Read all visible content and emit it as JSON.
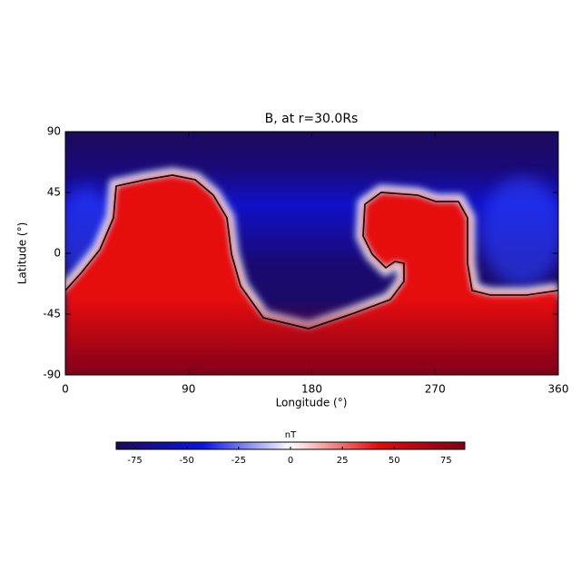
{
  "chart_data": {
    "type": "heatmap",
    "title": "B, at r=30.0Rs",
    "xlabel": "Longitude (°)",
    "ylabel": "Latitude (°)",
    "xlim": [
      0,
      360
    ],
    "xticks": [
      0,
      90,
      180,
      270,
      360
    ],
    "ylim": [
      -90,
      90
    ],
    "yticks": [
      -90,
      -45,
      0,
      45,
      90
    ],
    "colorbar": {
      "label": "nT",
      "lim": [
        -84,
        84
      ],
      "ticks": [
        -75,
        -50,
        -25,
        0,
        25,
        50,
        75
      ],
      "colormap": [
        "#1c0a5a",
        "#0a14e6",
        "#ffffff",
        "#e60a0a",
        "#80001a"
      ]
    }
  }
}
